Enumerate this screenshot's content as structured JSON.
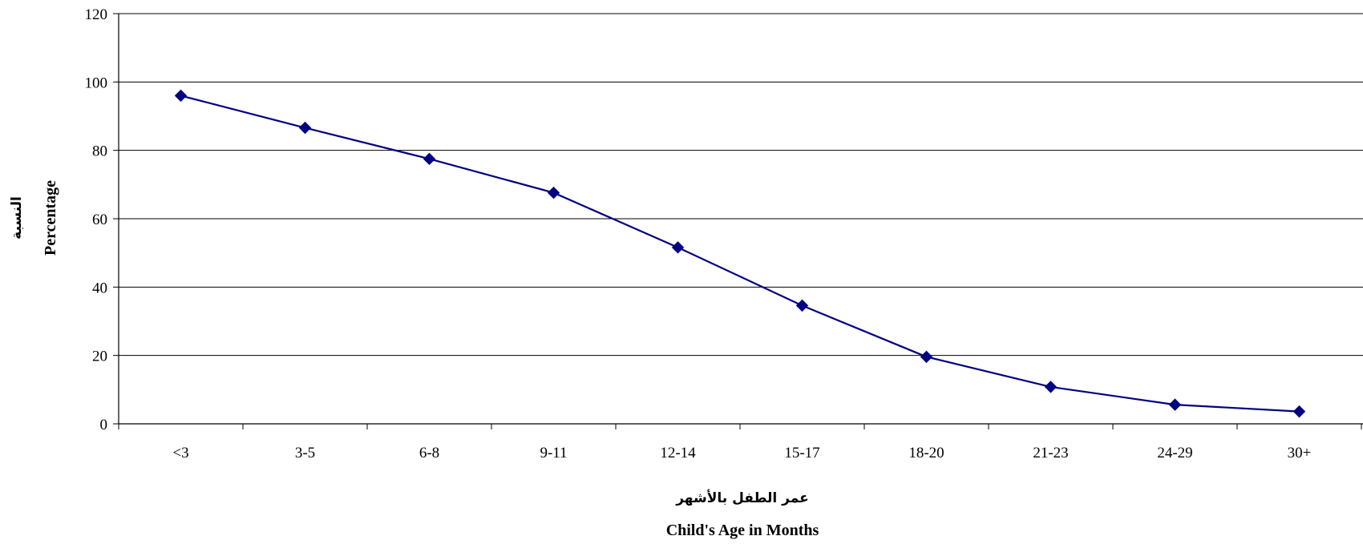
{
  "chart_data": {
    "type": "line",
    "categories": [
      "<3",
      "3-5",
      "6-8",
      "9-11",
      "12-14",
      "15-17",
      "18-20",
      "21-23",
      "24-29",
      "30+"
    ],
    "series": [
      {
        "values": [
          96,
          86.6,
          77.5,
          67.6,
          51.6,
          34.6,
          19.6,
          10.8,
          5.6,
          3.6
        ]
      }
    ],
    "ylim": [
      0,
      120
    ],
    "yticks": [
      0,
      20,
      40,
      60,
      80,
      100,
      120
    ],
    "xlabel_ar": "عمر الطفل بالأشهر",
    "xlabel": "Child's Age in Months",
    "ylabel_ar": "النسبة",
    "ylabel": "Percentage",
    "grid": true,
    "line_color": "#000080"
  }
}
